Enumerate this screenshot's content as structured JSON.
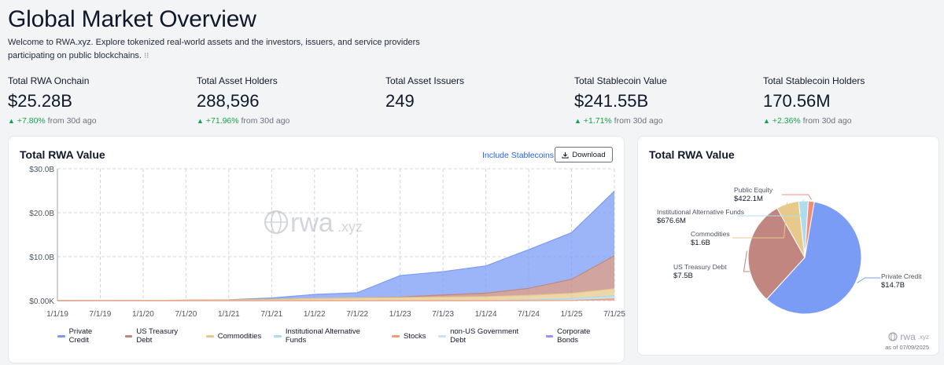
{
  "page": {
    "title": "Global Market Overview",
    "intro": "Welcome to RWA.xyz. Explore tokenized real-world assets and the investors, issuers, and service providers participating on public blockchains.",
    "info_glyph": "⁝⁝"
  },
  "stats": [
    {
      "label": "Total RWA Onchain",
      "value": "$25.28B",
      "delta_pct": "+7.80%",
      "delta_suffix": "from 30d ago"
    },
    {
      "label": "Total Asset Holders",
      "value": "288,596",
      "delta_pct": "+71.96%",
      "delta_suffix": "from 30d ago"
    },
    {
      "label": "Total Asset Issuers",
      "value": "249",
      "delta_pct": "",
      "delta_suffix": ""
    },
    {
      "label": "Total Stablecoin Value",
      "value": "$241.55B",
      "delta_pct": "+1.71%",
      "delta_suffix": "from 30d ago"
    },
    {
      "label": "Total Stablecoin Holders",
      "value": "170.56M",
      "delta_pct": "+2.36%",
      "delta_suffix": "from 30d ago"
    }
  ],
  "area_card": {
    "title": "Total RWA Value",
    "include_stablecoins": "Include Stablecoins",
    "download": "Download",
    "watermark": "rwa",
    "watermark_suffix": ".xyz"
  },
  "pie_card": {
    "title": "Total RWA Value",
    "as_of": "as of 07/09/2025",
    "watermark": "rwa",
    "watermark_suffix": ".xyz"
  },
  "colors": {
    "private_credit": "#7b9cf5",
    "us_treasury": "#c1867f",
    "commodities": "#e7c98c",
    "inst_alt": "#aedcec",
    "stocks": "#f19a7b",
    "non_us_gov": "#c8e4f2",
    "corporate_bonds": "#a78bfa",
    "public_equity": "#f28c78",
    "grid": "#d1d5db",
    "green": "#16a34a"
  },
  "chart_data": [
    {
      "type": "area",
      "title": "Total RWA Value",
      "x": [
        "1/1/19",
        "7/1/19",
        "1/1/20",
        "7/1/20",
        "1/1/21",
        "7/1/21",
        "1/1/22",
        "7/1/22",
        "1/1/23",
        "7/1/23",
        "1/1/24",
        "7/1/24",
        "1/1/25",
        "7/1/25"
      ],
      "ylim": [
        0,
        30
      ],
      "y_ticks": [
        "$0.00K",
        "$10.0B",
        "$20.0B",
        "$30.0B"
      ],
      "x_ticks": [
        "1/1/19",
        "7/1/19",
        "1/1/20",
        "7/1/20",
        "1/1/21",
        "7/1/21",
        "1/1/22",
        "7/1/22",
        "1/1/23",
        "7/1/23",
        "1/1/24",
        "7/1/24",
        "1/1/25",
        "7/1/25"
      ],
      "stacked": true,
      "grid": true,
      "series": [
        {
          "name": "Stocks",
          "values": [
            0,
            0,
            0,
            0,
            0,
            0,
            0,
            0,
            0,
            0,
            0,
            0,
            0.05,
            0.4
          ]
        },
        {
          "name": "Institutional Alternative Funds",
          "values": [
            0,
            0,
            0,
            0,
            0,
            0,
            0,
            0,
            0,
            0,
            0,
            0.2,
            0.4,
            0.7
          ]
        },
        {
          "name": "Commodities",
          "values": [
            0,
            0.01,
            0.05,
            0.1,
            0.15,
            0.3,
            0.5,
            0.6,
            0.7,
            0.8,
            0.9,
            1.0,
            1.2,
            1.6
          ]
        },
        {
          "name": "US Treasury Debt",
          "values": [
            0,
            0,
            0,
            0,
            0,
            0,
            0,
            0,
            0.1,
            0.5,
            0.8,
            1.6,
            3.2,
            7.5
          ]
        },
        {
          "name": "Private Credit",
          "values": [
            0,
            0,
            0,
            0,
            0.05,
            0.3,
            0.9,
            1.2,
            4.9,
            5.3,
            6.2,
            8.8,
            10.6,
            14.7
          ]
        }
      ],
      "legend": [
        "Private Credit",
        "US Treasury Debt",
        "Commodities",
        "Institutional Alternative Funds",
        "Stocks",
        "non-US Government Debt",
        "Corporate Bonds"
      ],
      "legend_position": "bottom"
    },
    {
      "type": "pie",
      "title": "Total RWA Value",
      "slices": [
        {
          "name": "Private Credit",
          "label": "$14.7B",
          "value": 14.7
        },
        {
          "name": "US Treasury Debt",
          "label": "$7.5B",
          "value": 7.5
        },
        {
          "name": "Commodities",
          "label": "$1.6B",
          "value": 1.6
        },
        {
          "name": "Institutional Alternative Funds",
          "label": "$676.6M",
          "value": 0.6766
        },
        {
          "name": "Public Equity",
          "label": "$422.1M",
          "value": 0.4221
        }
      ]
    }
  ]
}
